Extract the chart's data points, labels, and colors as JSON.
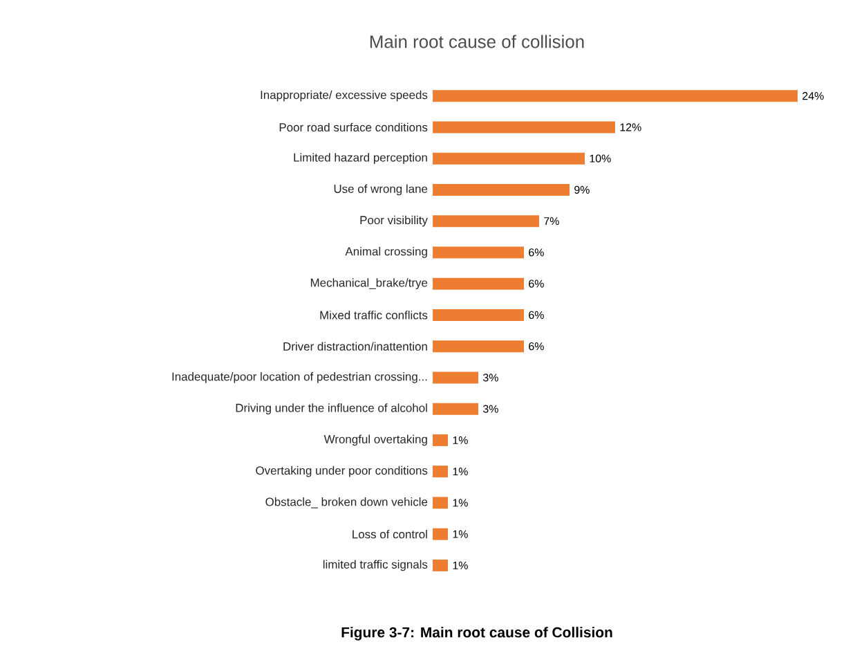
{
  "chart_data": {
    "type": "bar",
    "orientation": "horizontal",
    "title": "Main root cause of collision",
    "categories": [
      "Inappropriate/ excessive speeds",
      "Poor road surface conditions",
      "Limited hazard perception",
      "Use of wrong lane",
      "Poor visibility",
      "Animal crossing",
      "Mechanical_brake/trye",
      "Mixed traffic conflicts",
      "Driver distraction/inattention",
      "Inadequate/poor location of pedestrian crossing...",
      "Driving under the influence of alcohol",
      "Wrongful overtaking",
      "Overtaking under poor conditions",
      "Obstacle_ broken down vehicle",
      "Loss of control",
      "limited traffic signals"
    ],
    "values": [
      24,
      12,
      10,
      9,
      7,
      6,
      6,
      6,
      6,
      3,
      3,
      1,
      1,
      1,
      1,
      1
    ],
    "value_labels": [
      "24%",
      "12%",
      "10%",
      "9%",
      "7%",
      "6%",
      "6%",
      "6%",
      "6%",
      "3%",
      "3%",
      "1%",
      "1%",
      "1%",
      "1%",
      "1%"
    ],
    "color": "#ed7d31",
    "annotations": [
      "Figure 3-7: Main root cause of Collision"
    ]
  }
}
